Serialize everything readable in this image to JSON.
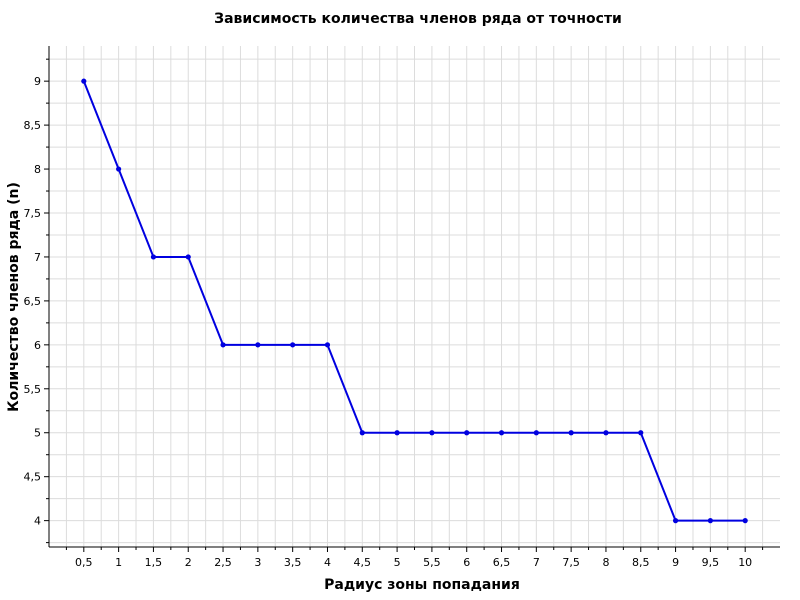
{
  "chart_data": {
    "type": "line",
    "title": "Зависимость количества членов ряда от точности",
    "xlabel": "Радиус зоны попадания",
    "ylabel": "Количество членов ряда (n)",
    "xlim": [
      0.0,
      10.5
    ],
    "ylim": [
      3.7,
      9.4
    ],
    "x_ticks": [
      0.5,
      1,
      1.5,
      2,
      2.5,
      3,
      3.5,
      4,
      4.5,
      5,
      5.5,
      6,
      6.5,
      7,
      7.5,
      8,
      8.5,
      9,
      9.5,
      10
    ],
    "x_tick_labels": [
      "0,5",
      "1",
      "1,5",
      "2",
      "2,5",
      "3",
      "3,5",
      "4",
      "4,5",
      "5",
      "5,5",
      "6",
      "6,5",
      "7",
      "7,5",
      "8",
      "8,5",
      "9",
      "9,5",
      "10"
    ],
    "y_ticks": [
      4,
      4.5,
      5,
      5.5,
      6,
      6.5,
      7,
      7.5,
      8,
      8.5,
      9
    ],
    "y_tick_labels": [
      "4",
      "4,5",
      "5",
      "5,5",
      "6",
      "6,5",
      "7",
      "7,5",
      "8",
      "8,5",
      "9"
    ],
    "grid": true,
    "series": [
      {
        "color": "#0000e0",
        "x": [
          0.5,
          1,
          1.5,
          2,
          2.5,
          3,
          3.5,
          4,
          4.5,
          5,
          5.5,
          6,
          6.5,
          7,
          7.5,
          8,
          8.5,
          9,
          9.5,
          10
        ],
        "y": [
          9,
          8,
          7,
          7,
          6,
          6,
          6,
          6,
          5,
          5,
          5,
          5,
          5,
          5,
          5,
          5,
          5,
          4,
          4,
          4
        ]
      }
    ]
  }
}
